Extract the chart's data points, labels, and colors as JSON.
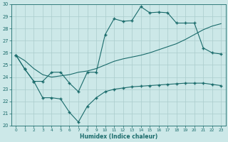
{
  "xlabel": "Humidex (Indice chaleur)",
  "bg_color": "#cce8e8",
  "grid_color": "#aacccc",
  "line_color": "#1a6b6b",
  "xlim": [
    -0.5,
    23.5
  ],
  "ylim": [
    20,
    30
  ],
  "xticks": [
    0,
    1,
    2,
    3,
    4,
    5,
    6,
    7,
    8,
    9,
    10,
    11,
    12,
    13,
    14,
    15,
    16,
    17,
    18,
    19,
    20,
    21,
    22,
    23
  ],
  "yticks": [
    20,
    21,
    22,
    23,
    24,
    25,
    26,
    27,
    28,
    29,
    30
  ],
  "curve_upper_x": [
    0,
    1,
    2,
    3,
    4,
    5,
    6,
    7,
    8,
    9,
    10,
    11,
    12,
    13,
    14,
    15,
    16,
    17,
    18,
    19,
    20,
    21,
    22,
    23
  ],
  "curve_upper_y": [
    25.8,
    24.65,
    23.65,
    23.65,
    24.4,
    24.4,
    23.5,
    22.8,
    24.4,
    24.4,
    27.5,
    28.8,
    28.6,
    28.65,
    29.8,
    29.3,
    29.35,
    29.3,
    28.45,
    28.45,
    28.45,
    26.4,
    26.0,
    25.9
  ],
  "curve_middle_x": [
    0,
    1,
    2,
    3,
    4,
    5,
    6,
    7,
    8,
    9,
    10,
    11,
    12,
    13,
    14,
    15,
    16,
    17,
    18,
    19,
    20,
    21,
    22,
    23
  ],
  "curve_middle_y": [
    25.8,
    25.35,
    24.7,
    24.2,
    24.0,
    24.1,
    24.2,
    24.4,
    24.5,
    24.7,
    25.0,
    25.3,
    25.5,
    25.65,
    25.8,
    26.0,
    26.25,
    26.5,
    26.75,
    27.1,
    27.5,
    27.9,
    28.2,
    28.4
  ],
  "curve_lower_x": [
    0,
    1,
    2,
    3,
    4,
    5,
    6,
    7,
    8,
    9,
    10,
    11,
    12,
    13,
    14,
    15,
    16,
    17,
    18,
    19,
    20,
    21,
    22,
    23
  ],
  "curve_lower_y": [
    25.8,
    24.65,
    23.65,
    22.3,
    22.3,
    22.2,
    21.1,
    20.3,
    21.6,
    22.3,
    22.8,
    23.0,
    23.1,
    23.2,
    23.25,
    23.3,
    23.35,
    23.4,
    23.45,
    23.5,
    23.5,
    23.5,
    23.4,
    23.3
  ]
}
